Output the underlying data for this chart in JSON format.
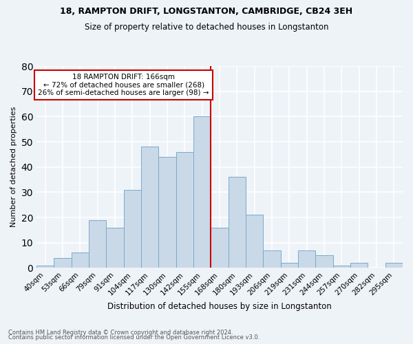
{
  "title1": "18, RAMPTON DRIFT, LONGSTANTON, CAMBRIDGE, CB24 3EH",
  "title2": "Size of property relative to detached houses in Longstanton",
  "xlabel": "Distribution of detached houses by size in Longstanton",
  "ylabel": "Number of detached properties",
  "footnote1": "Contains HM Land Registry data © Crown copyright and database right 2024.",
  "footnote2": "Contains public sector information licensed under the Open Government Licence v3.0.",
  "bar_labels": [
    "40sqm",
    "53sqm",
    "66sqm",
    "79sqm",
    "91sqm",
    "104sqm",
    "117sqm",
    "130sqm",
    "142sqm",
    "155sqm",
    "168sqm",
    "180sqm",
    "193sqm",
    "206sqm",
    "219sqm",
    "231sqm",
    "244sqm",
    "257sqm",
    "270sqm",
    "282sqm",
    "295sqm"
  ],
  "bar_values": [
    1,
    4,
    6,
    19,
    16,
    31,
    48,
    44,
    46,
    60,
    16,
    36,
    21,
    7,
    2,
    7,
    5,
    1,
    2,
    0,
    2
  ],
  "bar_color": "#c9d9e8",
  "bar_edge_color": "#7aaac8",
  "bg_color": "#eef3f8",
  "grid_color": "#ffffff",
  "vline_index": 10,
  "vline_color": "#cc0000",
  "annotation_text": "18 RAMPTON DRIFT: 166sqm\n← 72% of detached houses are smaller (268)\n26% of semi-detached houses are larger (98) →",
  "annotation_box_edge_color": "#cc0000",
  "annotation_box_face_color": "#ffffff",
  "ylim": [
    0,
    80
  ],
  "yticks": [
    0,
    10,
    20,
    30,
    40,
    50,
    60,
    70,
    80
  ]
}
